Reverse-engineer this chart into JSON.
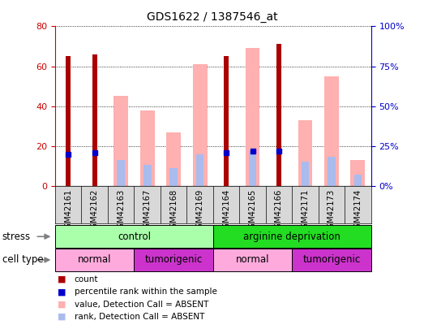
{
  "title": "GDS1622 / 1387546_at",
  "samples": [
    "GSM42161",
    "GSM42162",
    "GSM42163",
    "GSM42167",
    "GSM42168",
    "GSM42169",
    "GSM42164",
    "GSM42165",
    "GSM42166",
    "GSM42171",
    "GSM42173",
    "GSM42174"
  ],
  "count": [
    65,
    66,
    0,
    0,
    0,
    0,
    65,
    0,
    71,
    0,
    0,
    0
  ],
  "percentile_rank": [
    20,
    21,
    0,
    0,
    0,
    0,
    21,
    22,
    22,
    0,
    0,
    0
  ],
  "value_absent": [
    0,
    0,
    45,
    38,
    27,
    61,
    0,
    69,
    0,
    33,
    55,
    13
  ],
  "rank_absent": [
    0,
    0,
    16,
    13,
    11,
    20,
    0,
    22,
    0,
    15,
    18,
    7
  ],
  "ylim_left": [
    0,
    80
  ],
  "ylim_right": [
    0,
    100
  ],
  "yticks_left": [
    0,
    20,
    40,
    60,
    80
  ],
  "yticks_right": [
    0,
    25,
    50,
    75,
    100
  ],
  "stress_groups": [
    {
      "label": "control",
      "start": 0,
      "end": 6,
      "color": "#AAFFAA"
    },
    {
      "label": "arginine deprivation",
      "start": 6,
      "end": 12,
      "color": "#22DD22"
    }
  ],
  "cell_type_groups": [
    {
      "label": "normal",
      "start": 0,
      "end": 3,
      "color": "#FFAADD"
    },
    {
      "label": "tumorigenic",
      "start": 3,
      "end": 6,
      "color": "#CC33CC"
    },
    {
      "label": "normal",
      "start": 6,
      "end": 9,
      "color": "#FFAADD"
    },
    {
      "label": "tumorigenic",
      "start": 9,
      "end": 12,
      "color": "#CC33CC"
    }
  ],
  "count_color": "#AA0000",
  "rank_color": "#0000CC",
  "value_absent_color": "#FFB0B0",
  "rank_absent_color": "#AABBEE",
  "left_axis_color": "#CC0000",
  "right_axis_color": "#0000CC",
  "tick_label_area_color": "#D8D8D8",
  "grid_color": "#000000"
}
